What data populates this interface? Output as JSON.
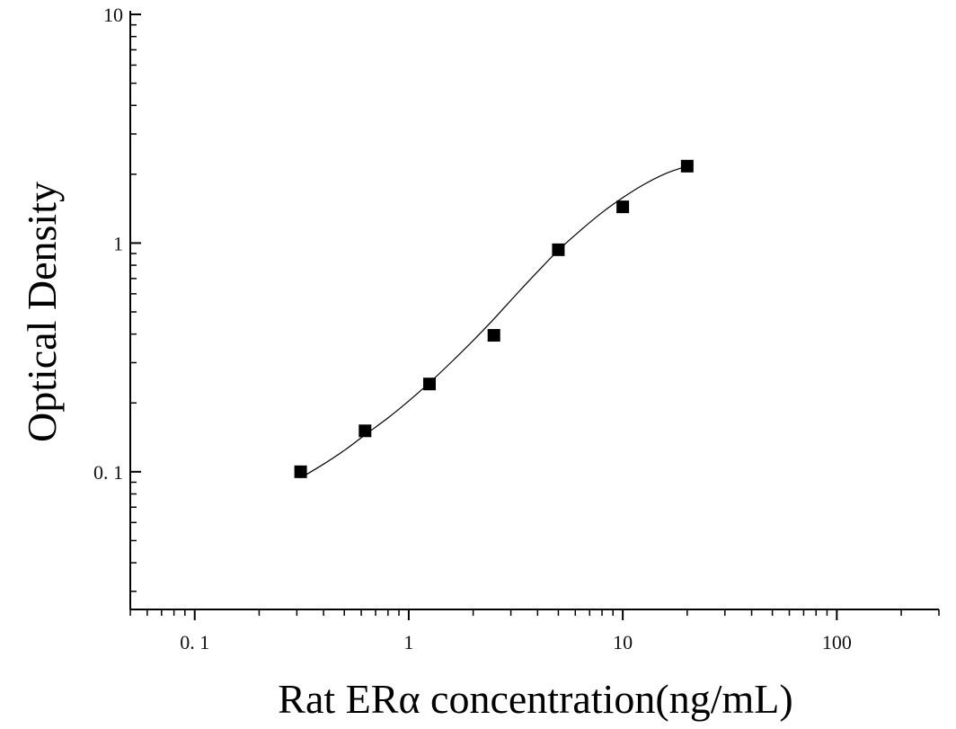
{
  "chart_data": {
    "type": "scatter",
    "xlabel": "Rat ERα concentration(ng/mL)",
    "ylabel": "Optical Density",
    "x_scale": "log",
    "y_scale": "log",
    "xlim": [
      0.05,
      300
    ],
    "ylim": [
      0.025,
      10
    ],
    "x_ticks": [
      0.1,
      1,
      10,
      100
    ],
    "x_tick_labels": [
      "0. 1",
      "1",
      "10",
      "100"
    ],
    "y_ticks": [
      0.1,
      1,
      10
    ],
    "y_tick_labels": [
      "0. 1",
      "1",
      "10"
    ],
    "grid": false,
    "legend": "none",
    "series": [
      {
        "marker": "square",
        "color": "#000000",
        "x": [
          0.3125,
          0.625,
          1.25,
          2.5,
          5,
          10,
          20
        ],
        "y": [
          0.1,
          0.151,
          0.242,
          0.395,
          0.935,
          1.44,
          2.17
        ]
      }
    ],
    "fit_curve": {
      "type": "line",
      "color": "#000000",
      "x": [
        0.3125,
        0.4,
        0.5,
        0.625,
        0.8,
        1.0,
        1.25,
        1.6,
        2.0,
        2.5,
        3.2,
        4.0,
        5.0,
        6.3,
        8.0,
        10.0,
        12.5,
        16.0,
        20.0
      ],
      "y": [
        0.094,
        0.108,
        0.124,
        0.145,
        0.172,
        0.204,
        0.245,
        0.305,
        0.375,
        0.466,
        0.6,
        0.75,
        0.93,
        1.13,
        1.36,
        1.58,
        1.8,
        2.02,
        2.17
      ]
    }
  }
}
